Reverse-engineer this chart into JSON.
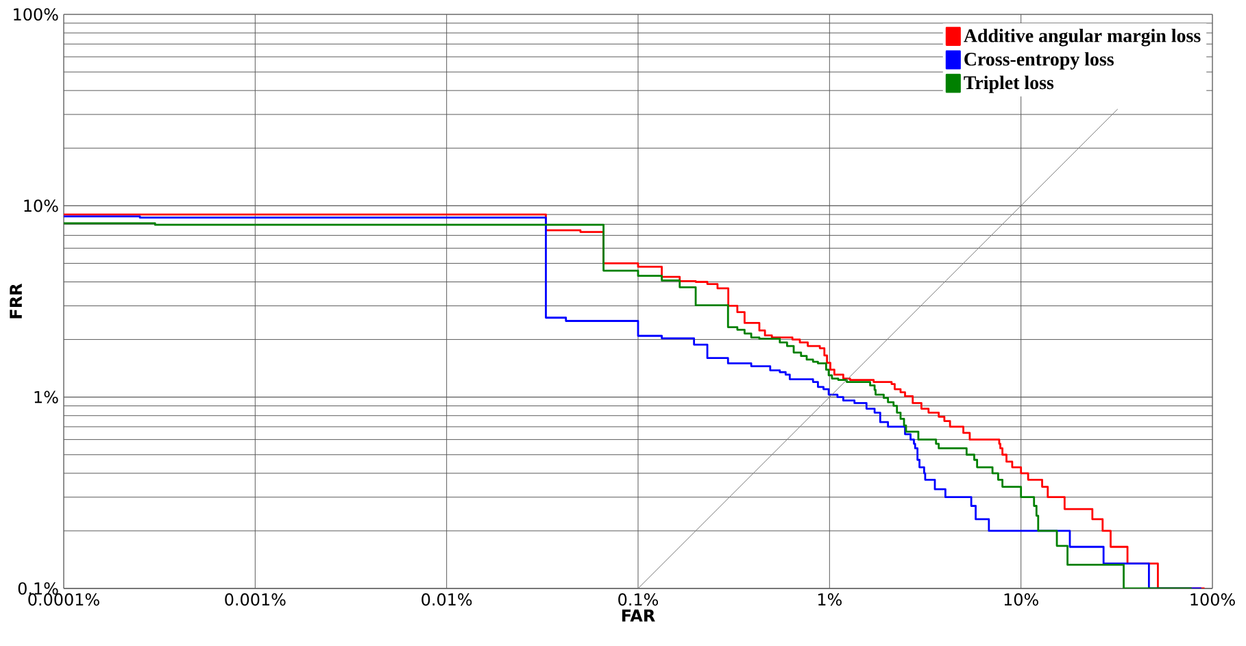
{
  "chart_data": {
    "type": "step",
    "xlabel": "FAR",
    "ylabel": "FRR",
    "log": "xy",
    "grid": true,
    "legend": "top right",
    "xlim": [
      0.0001,
      100
    ],
    "ylim": [
      0.1,
      100
    ],
    "xticks": [
      {
        "value": 0.0001,
        "label": "0.0001%"
      },
      {
        "value": 0.001,
        "label": "0.001%"
      },
      {
        "value": 0.01,
        "label": "0.01%"
      },
      {
        "value": 0.1,
        "label": "0.1%"
      },
      {
        "value": 1,
        "label": "1%"
      },
      {
        "value": 10,
        "label": "10%"
      },
      {
        "value": 100,
        "label": "100%"
      }
    ],
    "yticks": [
      {
        "value": 0.1,
        "label": "0.1%"
      },
      {
        "value": 1,
        "label": "1%"
      },
      {
        "value": 10,
        "label": "10%"
      },
      {
        "value": 100,
        "label": "100%"
      }
    ],
    "series": [
      {
        "name": "Additive angular margin loss",
        "color": "#ff0000",
        "x": [
          0.0001,
          0.033,
          0.05,
          0.066,
          0.1,
          0.133,
          0.165,
          0.2,
          0.23,
          0.26,
          0.296,
          0.33,
          0.36,
          0.43,
          0.46,
          0.5,
          0.64,
          0.7,
          0.77,
          0.89,
          0.94,
          0.97,
          1.01,
          1.06,
          1.18,
          1.28,
          1.7,
          2.11,
          2.19,
          2.35,
          2.48,
          2.72,
          3.02,
          3.29,
          3.72,
          3.98,
          4.26,
          5.0,
          5.4,
          7.7,
          7.8,
          8.0,
          8.4,
          9.0,
          10.0,
          10.9,
          12.9,
          13.8,
          16.9,
          23.6,
          26.7,
          29.4,
          36,
          51.9,
          91
        ],
        "values": [
          9.0,
          7.45,
          7.3,
          5.0,
          4.8,
          4.25,
          4.04,
          4.0,
          3.9,
          3.7,
          3.0,
          2.78,
          2.44,
          2.23,
          2.1,
          2.05,
          2.0,
          1.93,
          1.85,
          1.8,
          1.65,
          1.51,
          1.39,
          1.31,
          1.25,
          1.23,
          1.2,
          1.17,
          1.1,
          1.06,
          1.01,
          0.93,
          0.87,
          0.83,
          0.79,
          0.75,
          0.7,
          0.65,
          0.6,
          0.57,
          0.54,
          0.5,
          0.46,
          0.43,
          0.4,
          0.37,
          0.34,
          0.3,
          0.26,
          0.23,
          0.2,
          0.165,
          0.135,
          0.1,
          0.1
        ]
      },
      {
        "name": "Cross-entropy loss",
        "color": "#0000ff",
        "x": [
          0.0001,
          0.00025,
          0.033,
          0.042,
          0.1,
          0.133,
          0.196,
          0.23,
          0.295,
          0.39,
          0.49,
          0.55,
          0.59,
          0.62,
          0.82,
          0.87,
          0.93,
          0.99,
          1.1,
          1.18,
          1.35,
          1.56,
          1.72,
          1.84,
          2.02,
          2.48,
          2.65,
          2.76,
          2.8,
          2.88,
          2.95,
          3.12,
          3.16,
          3.55,
          4.03,
          5.5,
          5.8,
          6.8,
          18,
          27,
          46.6,
          87.5
        ],
        "values": [
          8.8,
          8.67,
          2.6,
          2.5,
          2.09,
          2.03,
          1.88,
          1.6,
          1.5,
          1.45,
          1.38,
          1.35,
          1.31,
          1.24,
          1.2,
          1.13,
          1.1,
          1.03,
          1.0,
          0.96,
          0.93,
          0.87,
          0.83,
          0.74,
          0.7,
          0.64,
          0.6,
          0.57,
          0.54,
          0.47,
          0.43,
          0.4,
          0.37,
          0.33,
          0.3,
          0.27,
          0.23,
          0.2,
          0.165,
          0.135,
          0.1,
          0.1
        ]
      },
      {
        "name": "Triplet loss",
        "color": "#008000",
        "x": [
          0.0001,
          0.0003,
          0.066,
          0.1,
          0.133,
          0.165,
          0.2,
          0.295,
          0.33,
          0.36,
          0.39,
          0.43,
          0.55,
          0.6,
          0.65,
          0.71,
          0.76,
          0.82,
          0.87,
          0.96,
          0.99,
          1.03,
          1.11,
          1.23,
          1.63,
          1.72,
          1.74,
          1.92,
          2.02,
          2.16,
          2.25,
          2.35,
          2.45,
          2.51,
          2.91,
          3.6,
          3.72,
          5.2,
          5.7,
          5.9,
          7.1,
          7.6,
          8.0,
          10.0,
          11.7,
          12.05,
          12.3,
          15.4,
          17.5,
          34.4,
          77.9
        ],
        "values": [
          8.1,
          7.95,
          4.58,
          4.3,
          4.07,
          3.75,
          3.02,
          2.32,
          2.25,
          2.15,
          2.05,
          2.02,
          1.93,
          1.85,
          1.71,
          1.64,
          1.57,
          1.53,
          1.5,
          1.39,
          1.3,
          1.25,
          1.23,
          1.2,
          1.15,
          1.09,
          1.03,
          0.99,
          0.94,
          0.9,
          0.83,
          0.77,
          0.71,
          0.66,
          0.6,
          0.57,
          0.54,
          0.5,
          0.47,
          0.43,
          0.4,
          0.37,
          0.34,
          0.3,
          0.27,
          0.24,
          0.2,
          0.167,
          0.133,
          0.1,
          0.1
        ]
      },
      {
        "type": "line",
        "color": "#808080",
        "x": [
          0.1,
          32
        ],
        "values": [
          0.1,
          32
        ]
      }
    ]
  }
}
